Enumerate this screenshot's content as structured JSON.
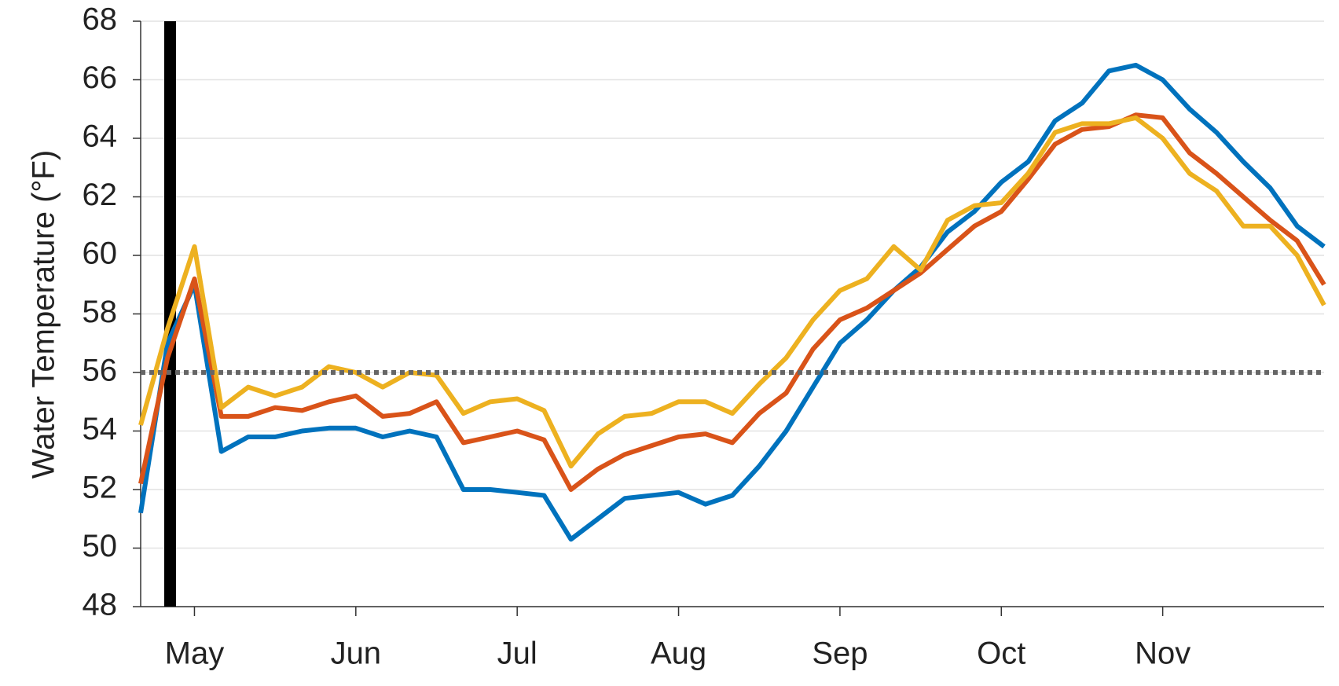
{
  "chart_data": {
    "type": "line",
    "y_label": "Water Temperature (°F)",
    "categories": [
      null,
      null,
      "May",
      null,
      null,
      null,
      null,
      null,
      "Jun",
      null,
      null,
      null,
      null,
      null,
      "Jul",
      null,
      null,
      null,
      null,
      null,
      "Aug",
      null,
      null,
      null,
      null,
      null,
      "Sep",
      null,
      null,
      null,
      null,
      null,
      "Oct",
      null,
      null,
      null,
      null,
      null,
      "Nov",
      null,
      null,
      null,
      null,
      null,
      null
    ],
    "series": [
      {
        "color": "#0072bd",
        "values": [
          51.2,
          57.0,
          59.0,
          53.3,
          53.8,
          53.8,
          54.0,
          54.1,
          54.1,
          53.8,
          54.0,
          53.8,
          52.0,
          52.0,
          51.9,
          51.8,
          50.3,
          51.0,
          51.7,
          51.8,
          51.9,
          51.5,
          51.8,
          52.8,
          54.0,
          55.5,
          57.0,
          57.8,
          58.8,
          59.6,
          60.8,
          61.5,
          62.5,
          63.2,
          64.6,
          65.2,
          66.3,
          66.5,
          66.0,
          65.0,
          64.2,
          63.2,
          62.3,
          61.0,
          60.3
        ]
      },
      {
        "color": "#d95319",
        "values": [
          52.2,
          56.5,
          59.2,
          54.5,
          54.5,
          54.8,
          54.7,
          55.0,
          55.2,
          54.5,
          54.6,
          55.0,
          53.6,
          53.8,
          54.0,
          53.7,
          52.0,
          52.7,
          53.2,
          53.5,
          53.8,
          53.9,
          53.6,
          54.6,
          55.3,
          56.8,
          57.8,
          58.2,
          58.8,
          59.4,
          60.2,
          61.0,
          61.5,
          62.6,
          63.8,
          64.3,
          64.4,
          64.8,
          64.7,
          63.5,
          62.8,
          62.0,
          61.2,
          60.5,
          59.0
        ]
      },
      {
        "color": "#edb120",
        "values": [
          54.2,
          57.5,
          60.3,
          54.8,
          55.5,
          55.2,
          55.5,
          56.2,
          56.0,
          55.5,
          56.0,
          55.9,
          54.6,
          55.0,
          55.1,
          54.7,
          52.8,
          53.9,
          54.5,
          54.6,
          55.0,
          55.0,
          54.6,
          55.6,
          56.5,
          57.8,
          58.8,
          59.2,
          60.3,
          59.5,
          61.2,
          61.7,
          61.8,
          62.8,
          64.2,
          64.5,
          64.5,
          64.7,
          64.0,
          62.8,
          62.2,
          61.0,
          61.0,
          60.0,
          58.3
        ]
      }
    ],
    "reference_line": 56,
    "ylim": [
      48,
      68
    ],
    "yticks": [
      48,
      50,
      52,
      54,
      56,
      58,
      60,
      62,
      64,
      66,
      68
    ],
    "grid": true
  }
}
